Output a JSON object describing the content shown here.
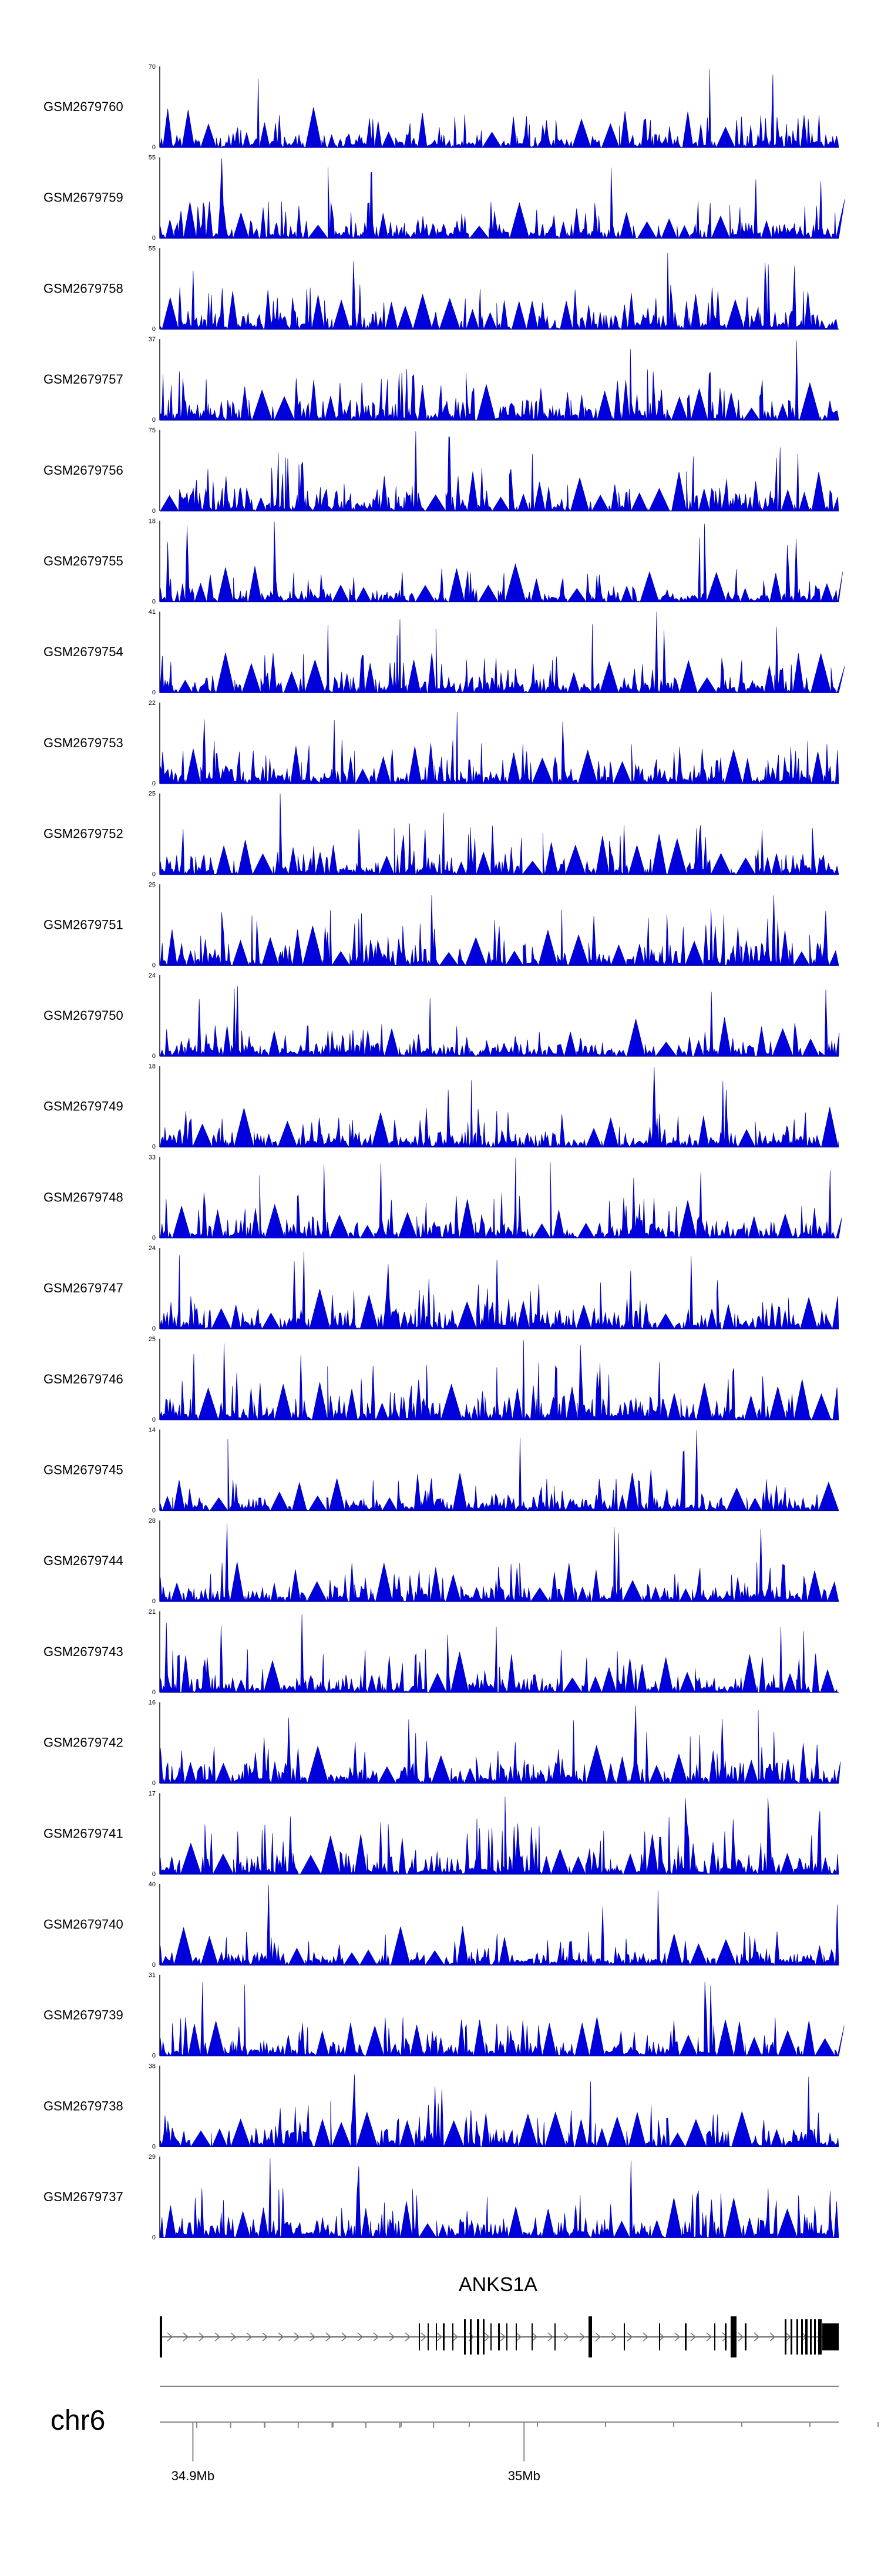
{
  "chart_data": {
    "type": "area",
    "tracks": [
      {
        "name": "GSM2679760",
        "ymax": "70",
        "ymin": "0"
      },
      {
        "name": "GSM2679759",
        "ymax": "55",
        "ymin": "0"
      },
      {
        "name": "GSM2679758",
        "ymax": "55",
        "ymin": "0"
      },
      {
        "name": "GSM2679757",
        "ymax": "37",
        "ymin": "0"
      },
      {
        "name": "GSM2679756",
        "ymax": "75",
        "ymin": "0"
      },
      {
        "name": "GSM2679755",
        "ymax": "18",
        "ymin": "0"
      },
      {
        "name": "GSM2679754",
        "ymax": "41",
        "ymin": "0"
      },
      {
        "name": "GSM2679753",
        "ymax": "22",
        "ymin": "0"
      },
      {
        "name": "GSM2679752",
        "ymax": "25",
        "ymin": "0"
      },
      {
        "name": "GSM2679751",
        "ymax": "25",
        "ymin": "0"
      },
      {
        "name": "GSM2679750",
        "ymax": "24",
        "ymin": "0"
      },
      {
        "name": "GSM2679749",
        "ymax": "18",
        "ymin": "0"
      },
      {
        "name": "GSM2679748",
        "ymax": "33",
        "ymin": "0"
      },
      {
        "name": "GSM2679747",
        "ymax": "24",
        "ymin": "0"
      },
      {
        "name": "GSM2679746",
        "ymax": "25",
        "ymin": "0"
      },
      {
        "name": "GSM2679745",
        "ymax": "14",
        "ymin": "0"
      },
      {
        "name": "GSM2679744",
        "ymax": "28",
        "ymin": "0"
      },
      {
        "name": "GSM2679743",
        "ymax": "21",
        "ymin": "0"
      },
      {
        "name": "GSM2679742",
        "ymax": "16",
        "ymin": "0"
      },
      {
        "name": "GSM2679741",
        "ymax": "17",
        "ymin": "0"
      },
      {
        "name": "GSM2679740",
        "ymax": "40",
        "ymin": "0"
      },
      {
        "name": "GSM2679739",
        "ymax": "31",
        "ymin": "0"
      },
      {
        "name": "GSM2679738",
        "ymax": "38",
        "ymin": "0"
      },
      {
        "name": "GSM2679737",
        "ymax": "29",
        "ymin": "0"
      }
    ],
    "gene": {
      "name": "ANKS1A",
      "strand": "+"
    },
    "chromosome": "chr6",
    "x_ticks": [
      {
        "label": "34.9Mb",
        "value": 34.9
      },
      {
        "label": "35Mb",
        "value": 35.0
      }
    ],
    "x_range_mb": [
      34.89,
      35.095
    ],
    "colors": {
      "signal": "#0000dd",
      "gene": "#000000",
      "axis": "#000000",
      "scale": "#888888"
    }
  }
}
